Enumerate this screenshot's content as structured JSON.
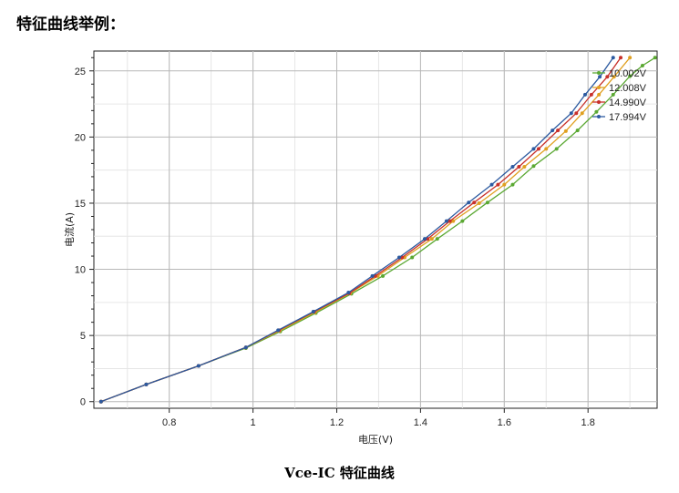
{
  "heading": "特征曲线举例：",
  "caption": "Vce-IC 特征曲线",
  "chart_data": {
    "type": "line",
    "xlabel": "电压(V)",
    "ylabel": "电流(A)",
    "xlim": [
      0.62,
      1.965
    ],
    "ylim": [
      -0.5,
      26.5
    ],
    "xticks": [
      "0.8",
      "1",
      "1.2",
      "1.4",
      "1.6",
      "1.8"
    ],
    "yticks": [
      "0",
      "5",
      "10",
      "15",
      "20",
      "25"
    ],
    "grid": true,
    "legend_position": "top-right",
    "series": [
      {
        "name": "10.002V",
        "color": "#5aa832",
        "x": [
          0.637,
          0.745,
          0.87,
          0.983,
          1.065,
          1.15,
          1.235,
          1.31,
          1.38,
          1.44,
          1.5,
          1.56,
          1.62,
          1.67,
          1.725,
          1.775,
          1.82,
          1.86,
          1.9,
          1.93,
          1.96
        ],
        "y": [
          0,
          1.3,
          2.7,
          4.05,
          5.3,
          6.7,
          8.15,
          9.5,
          10.9,
          12.3,
          13.65,
          15.05,
          16.4,
          17.8,
          19.1,
          20.5,
          21.9,
          23.2,
          24.6,
          25.4,
          26.0
        ]
      },
      {
        "name": "12.008V",
        "color": "#e0a020",
        "x": [
          0.637,
          0.745,
          0.87,
          0.983,
          1.063,
          1.148,
          1.232,
          1.298,
          1.362,
          1.427,
          1.478,
          1.54,
          1.6,
          1.648,
          1.7,
          1.747,
          1.786,
          1.826,
          1.862,
          1.9
        ],
        "y": [
          0,
          1.3,
          2.7,
          4.1,
          5.35,
          6.75,
          8.2,
          9.5,
          10.9,
          12.3,
          13.65,
          15.0,
          16.4,
          17.75,
          19.1,
          20.45,
          21.8,
          23.2,
          24.55,
          26.0
        ]
      },
      {
        "name": "14.990V",
        "color": "#c8302a",
        "x": [
          0.637,
          0.745,
          0.87,
          0.983,
          1.062,
          1.146,
          1.23,
          1.292,
          1.356,
          1.417,
          1.47,
          1.528,
          1.585,
          1.635,
          1.682,
          1.728,
          1.772,
          1.808,
          1.846,
          1.878
        ],
        "y": [
          0,
          1.3,
          2.7,
          4.1,
          5.4,
          6.8,
          8.2,
          9.5,
          10.9,
          12.3,
          13.65,
          15.05,
          16.4,
          17.75,
          19.1,
          20.5,
          21.8,
          23.2,
          24.55,
          26.0
        ]
      },
      {
        "name": "17.994V",
        "color": "#2c5aa0",
        "x": [
          0.637,
          0.745,
          0.87,
          0.983,
          1.06,
          1.144,
          1.228,
          1.285,
          1.349,
          1.41,
          1.462,
          1.515,
          1.57,
          1.62,
          1.67,
          1.715,
          1.76,
          1.793,
          1.828,
          1.86
        ],
        "y": [
          0,
          1.3,
          2.7,
          4.1,
          5.4,
          6.8,
          8.25,
          9.5,
          10.9,
          12.3,
          13.65,
          15.05,
          16.4,
          17.75,
          19.1,
          20.5,
          21.8,
          23.2,
          24.55,
          26.0
        ]
      }
    ]
  }
}
